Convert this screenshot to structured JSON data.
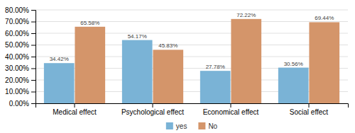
{
  "chart_data": {
    "type": "bar",
    "categories": [
      "Medical effect",
      "Psychological effect",
      "Economical effect",
      "Social effect"
    ],
    "series": [
      {
        "name": "yes",
        "color": "#7ab3d6",
        "values": [
          34.42,
          54.17,
          27.78,
          30.56
        ],
        "value_labels": [
          "34.42%",
          "54.17%",
          "27.78%",
          "30.56%"
        ]
      },
      {
        "name": "No",
        "color": "#d4956a",
        "values": [
          65.58,
          45.83,
          72.22,
          69.44
        ],
        "value_labels": [
          "65.58%",
          "45.83%",
          "72.22%",
          "69.44%"
        ]
      }
    ],
    "ylim": [
      0,
      80
    ],
    "yticks": [
      {
        "value": 0,
        "label": "0.00%"
      },
      {
        "value": 10,
        "label": "10.00%"
      },
      {
        "value": 20,
        "label": "20.00%"
      },
      {
        "value": 30,
        "label": "30.00%"
      },
      {
        "value": 40,
        "label": "40.00%"
      },
      {
        "value": 50,
        "label": "50.00%"
      },
      {
        "value": 60,
        "label": "60.00%"
      },
      {
        "value": 70,
        "label": "70.00%"
      },
      {
        "value": 80,
        "label": "80.00%"
      }
    ],
    "grid": true,
    "data_labels": true,
    "legend": "bottom"
  }
}
